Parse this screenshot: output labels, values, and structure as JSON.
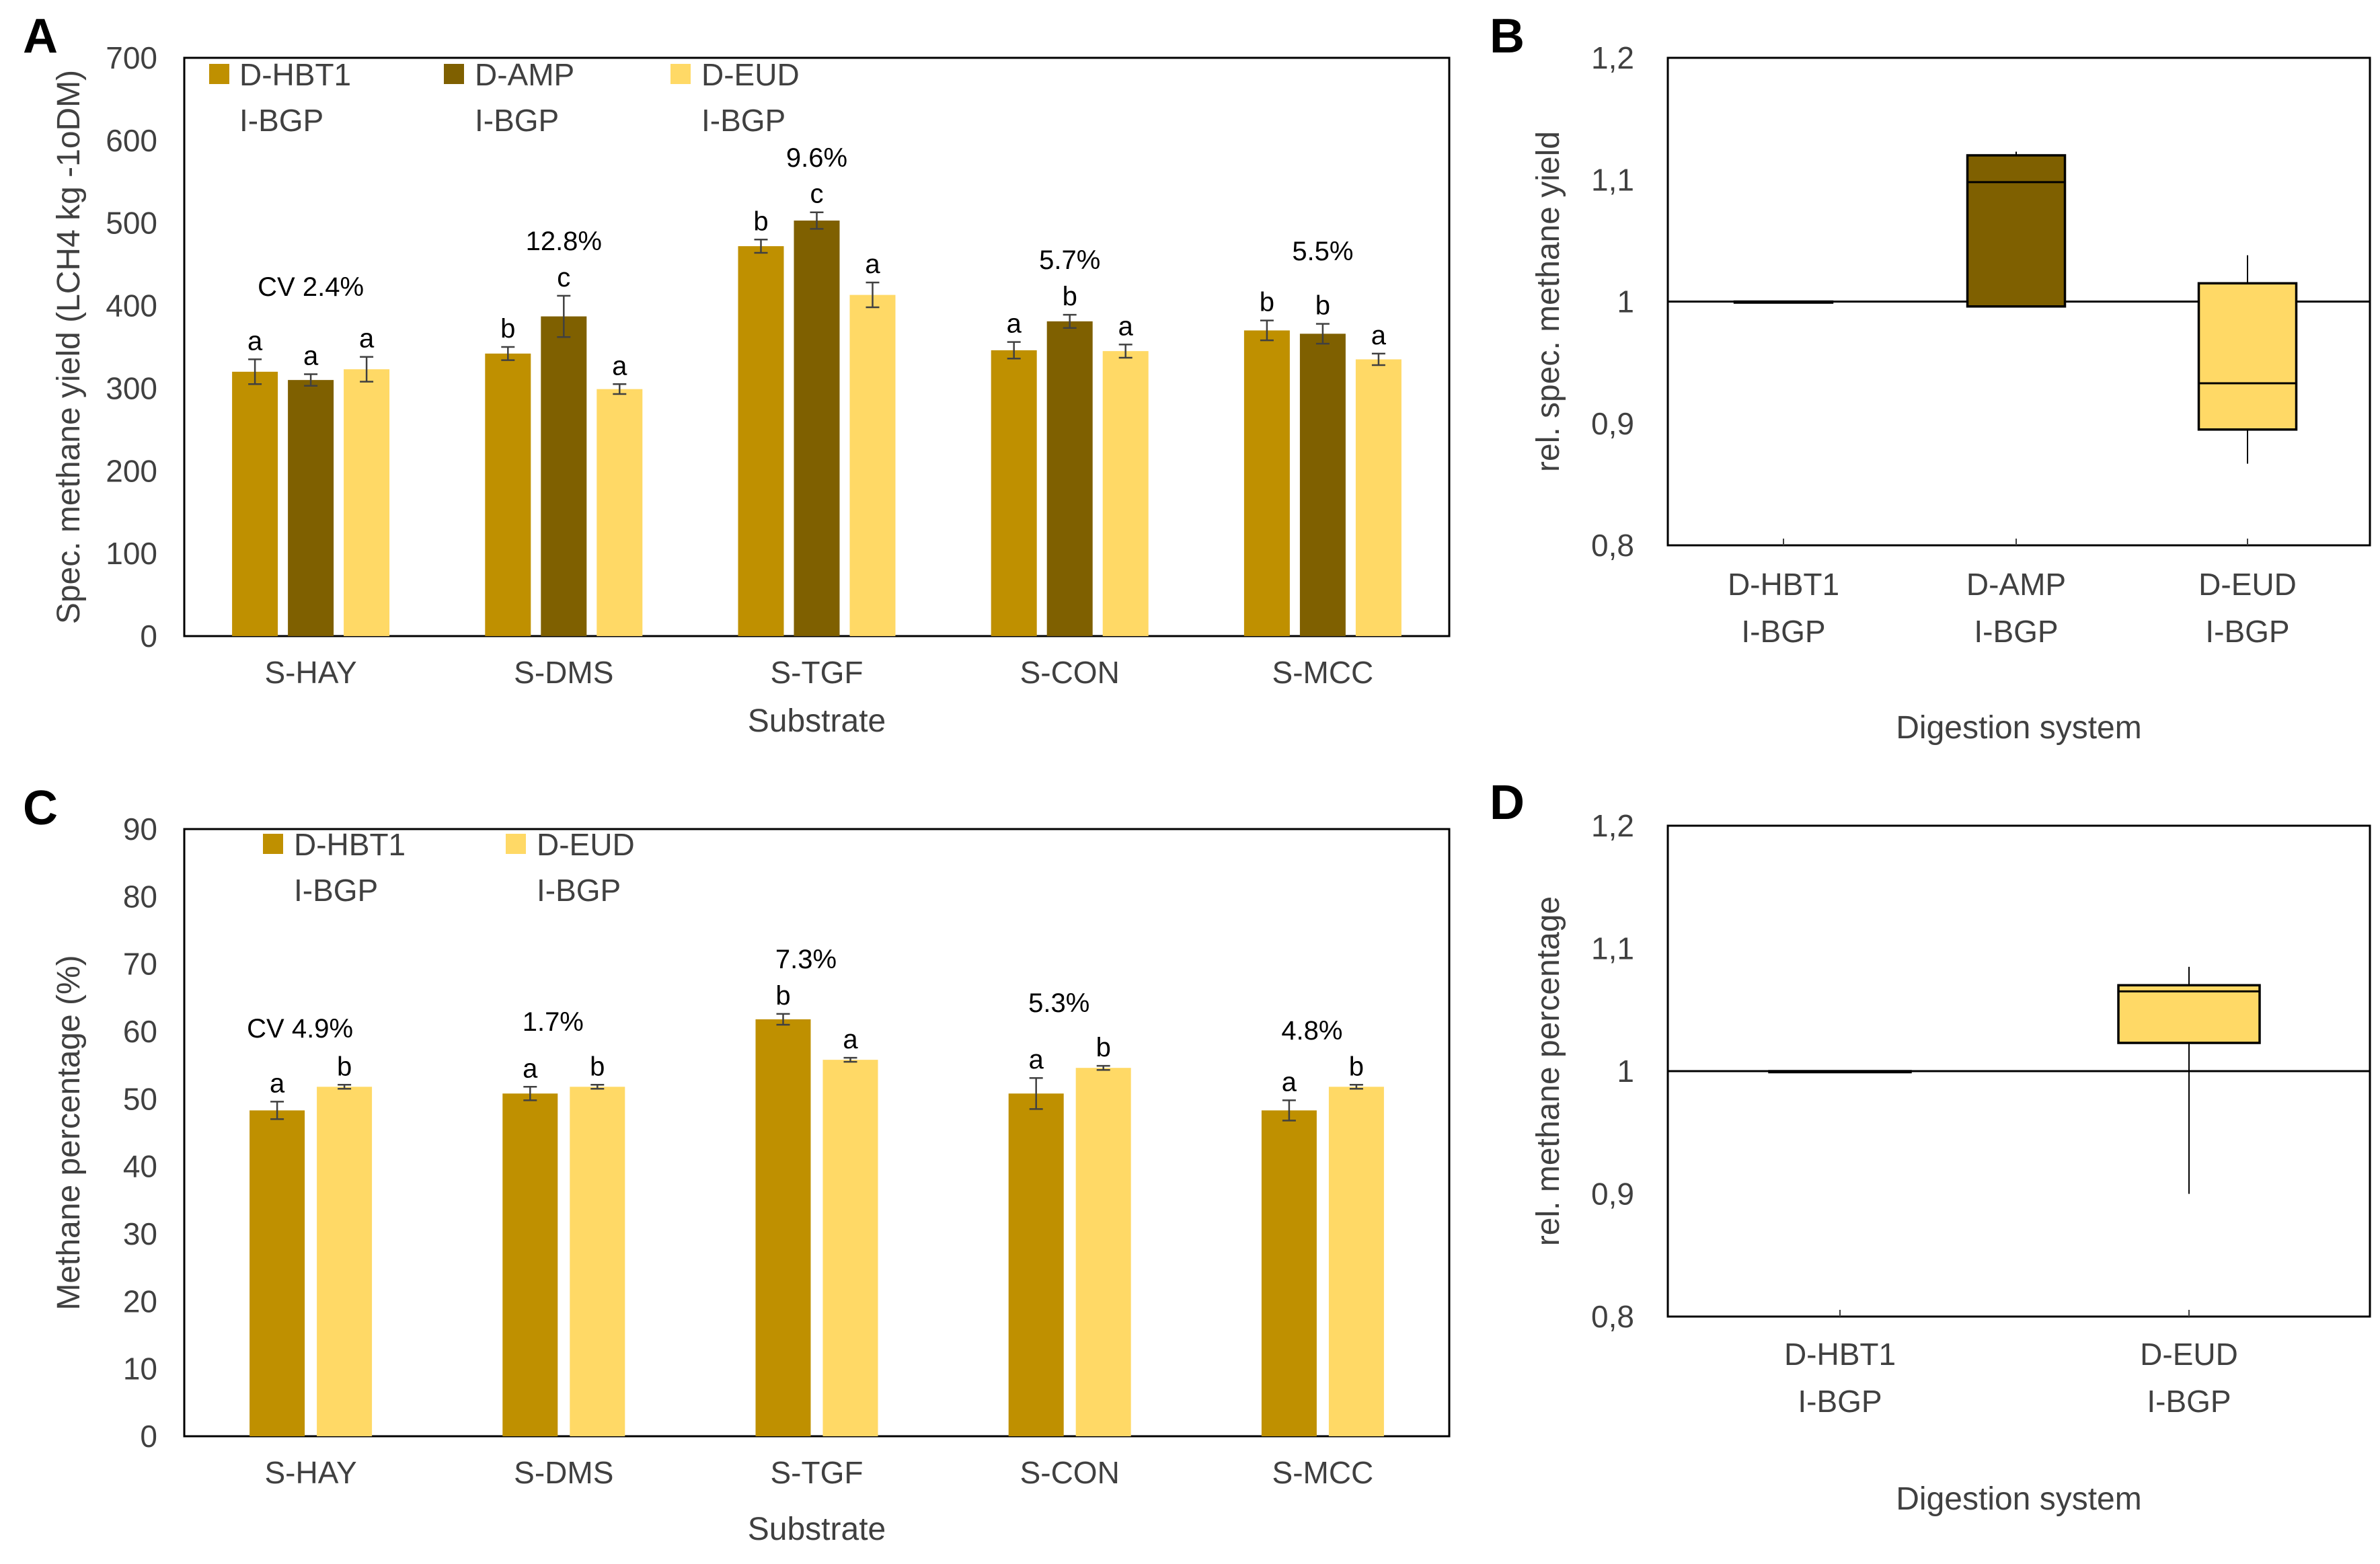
{
  "colors": {
    "D-HBT1": "#BF9000",
    "D-AMP": "#7F6000",
    "D-EUD": "#FFD966"
  },
  "chart_data": [
    {
      "panel": "A",
      "type": "bar",
      "xlabel": "Substrate",
      "ylabel": "Spec. methane yield (LCH4 kg -1oDM)",
      "ylim": [
        0,
        700
      ],
      "yticks": [
        "0",
        "100",
        "200",
        "300",
        "400",
        "500",
        "600",
        "700"
      ],
      "categories": [
        "S-HAY",
        "S-DMS",
        "S-TGF",
        "S-CON",
        "S-MCC"
      ],
      "legend": [
        {
          "name": "D-HBT1",
          "sub": "I-BGP",
          "color_key": "D-HBT1"
        },
        {
          "name": "D-AMP",
          "sub": "I-BGP",
          "color_key": "D-AMP"
        },
        {
          "name": "D-EUD",
          "sub": "I-BGP",
          "color_key": "D-EUD"
        }
      ],
      "series": [
        {
          "name": "D-HBT1 I-BGP",
          "color_key": "D-HBT1",
          "values": [
            320,
            342,
            472,
            346,
            370
          ],
          "errors": [
            15,
            8,
            8,
            10,
            12
          ],
          "letters": [
            "a",
            "b",
            "b",
            "a",
            "b"
          ]
        },
        {
          "name": "D-AMP I-BGP",
          "color_key": "D-AMP",
          "values": [
            310,
            387,
            503,
            381,
            366
          ],
          "errors": [
            7,
            25,
            10,
            8,
            12
          ],
          "letters": [
            "a",
            "c",
            "c",
            "b",
            "b"
          ]
        },
        {
          "name": "D-EUD I-BGP",
          "color_key": "D-EUD",
          "values": [
            323,
            299,
            413,
            345,
            335
          ],
          "errors": [
            15,
            6,
            15,
            8,
            7
          ],
          "letters": [
            "a",
            "a",
            "a",
            "a",
            "a"
          ]
        }
      ],
      "cv_labels": [
        "CV 2.4%",
        "12.8%",
        "9.6%",
        "5.7%",
        "5.5%"
      ]
    },
    {
      "panel": "B",
      "type": "box",
      "xlabel": "Digestion system",
      "ylabel": "rel. spec. methane yield",
      "ylim": [
        0.8,
        1.2
      ],
      "yticks": [
        "0,8",
        "0,9",
        "1",
        "1,1",
        "1,2"
      ],
      "baseline": 1.0,
      "groups": [
        {
          "name": "D-HBT1",
          "sub": "I-BGP",
          "color_key": "D-HBT1",
          "min": 1.0,
          "q1": 1.0,
          "median": 1.0,
          "q3": 1.0,
          "max": 1.0
        },
        {
          "name": "D-AMP",
          "sub": "I-BGP",
          "color_key": "D-AMP",
          "min": 0.996,
          "q1": 0.996,
          "median": 1.098,
          "q3": 1.12,
          "max": 1.123
        },
        {
          "name": "D-EUD",
          "sub": "I-BGP",
          "color_key": "D-EUD",
          "min": 0.867,
          "q1": 0.895,
          "median": 0.933,
          "q3": 1.015,
          "max": 1.038
        }
      ]
    },
    {
      "panel": "C",
      "type": "bar",
      "xlabel": "Substrate",
      "ylabel": "Methane percentage (%)",
      "ylim": [
        0,
        90
      ],
      "yticks": [
        "0",
        "10",
        "20",
        "30",
        "40",
        "50",
        "60",
        "70",
        "80",
        "90"
      ],
      "categories": [
        "S-HAY",
        "S-DMS",
        "S-TGF",
        "S-CON",
        "S-MCC"
      ],
      "legend": [
        {
          "name": "D-HBT1",
          "sub": "I-BGP",
          "color_key": "D-HBT1"
        },
        {
          "name": "D-EUD",
          "sub": "I-BGP",
          "color_key": "D-EUD"
        }
      ],
      "series": [
        {
          "name": "D-HBT1 I-BGP",
          "color_key": "D-HBT1",
          "values": [
            48.3,
            50.8,
            61.8,
            50.8,
            48.3
          ],
          "errors": [
            1.3,
            1.0,
            0.8,
            2.3,
            1.5
          ],
          "letters": [
            "a",
            "a",
            "b",
            "a",
            "a"
          ]
        },
        {
          "name": "D-EUD I-BGP",
          "color_key": "D-EUD",
          "values": [
            51.8,
            51.8,
            55.8,
            54.6,
            51.8
          ],
          "errors": [
            0.3,
            0.3,
            0.3,
            0.3,
            0.3
          ],
          "letters": [
            "b",
            "b",
            "a",
            "b",
            "b"
          ]
        }
      ],
      "cv_labels": [
        "CV 4.9%",
        "1.7%",
        "7.3%",
        "5.3%",
        "4.8%"
      ]
    },
    {
      "panel": "D",
      "type": "box",
      "xlabel": "Digestion  system",
      "ylabel": "rel. methane percentage",
      "ylim": [
        0.8,
        1.2
      ],
      "yticks": [
        "0,8",
        "0,9",
        "1",
        "1,1",
        "1,2"
      ],
      "baseline": 1.0,
      "groups": [
        {
          "name": "D-HBT1",
          "sub": "I-BGP",
          "color_key": "D-HBT1",
          "min": 1.0,
          "q1": 1.0,
          "median": 1.0,
          "q3": 1.0,
          "max": 1.0
        },
        {
          "name": "D-EUD",
          "sub": "I-BGP",
          "color_key": "D-EUD",
          "min": 0.9,
          "q1": 1.023,
          "median": 1.065,
          "q3": 1.07,
          "max": 1.085
        }
      ]
    }
  ]
}
